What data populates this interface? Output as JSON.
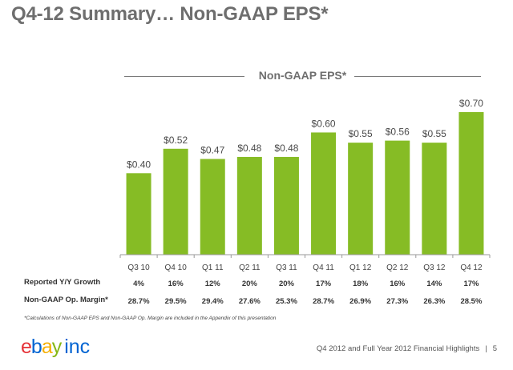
{
  "page": {
    "title": "Q4-12 Summary… Non-GAAP EPS*",
    "footnote": "*Calculations of Non-GAAP EPS and Non-GAAP Op. Margin are included in the Appendix of this presentation",
    "footer_text": "Q4 2012 and Full Year 2012 Financial Highlights",
    "page_number": "5",
    "logo": {
      "e": "e",
      "b": "b",
      "a": "a",
      "y": "y",
      "inc": "inc"
    }
  },
  "colors": {
    "bar": "#86bc25",
    "title": "#6e6e6e"
  },
  "chart_data": {
    "type": "bar",
    "title": "Non-GAAP EPS*",
    "categories": [
      "Q3 10",
      "Q4 10",
      "Q1 11",
      "Q2 11",
      "Q3 11",
      "Q4 11",
      "Q1 12",
      "Q2 12",
      "Q3 12",
      "Q4 12"
    ],
    "values": [
      0.4,
      0.52,
      0.47,
      0.48,
      0.48,
      0.6,
      0.55,
      0.56,
      0.55,
      0.7
    ],
    "data_labels": [
      "$0.40",
      "$0.52",
      "$0.47",
      "$0.48",
      "$0.48",
      "$0.60",
      "$0.55",
      "$0.56",
      "$0.55",
      "$0.70"
    ],
    "ylim": [
      0,
      0.7
    ],
    "grid": false,
    "table_rows": [
      {
        "label": "Reported Y/Y Growth",
        "values": [
          "4%",
          "16%",
          "12%",
          "20%",
          "20%",
          "17%",
          "18%",
          "16%",
          "14%",
          "17%"
        ]
      },
      {
        "label": "Non-GAAP Op. Margin*",
        "values": [
          "28.7%",
          "29.5%",
          "29.4%",
          "27.6%",
          "25.3%",
          "28.7%",
          "26.9%",
          "27.3%",
          "26.3%",
          "28.5%"
        ]
      }
    ]
  }
}
